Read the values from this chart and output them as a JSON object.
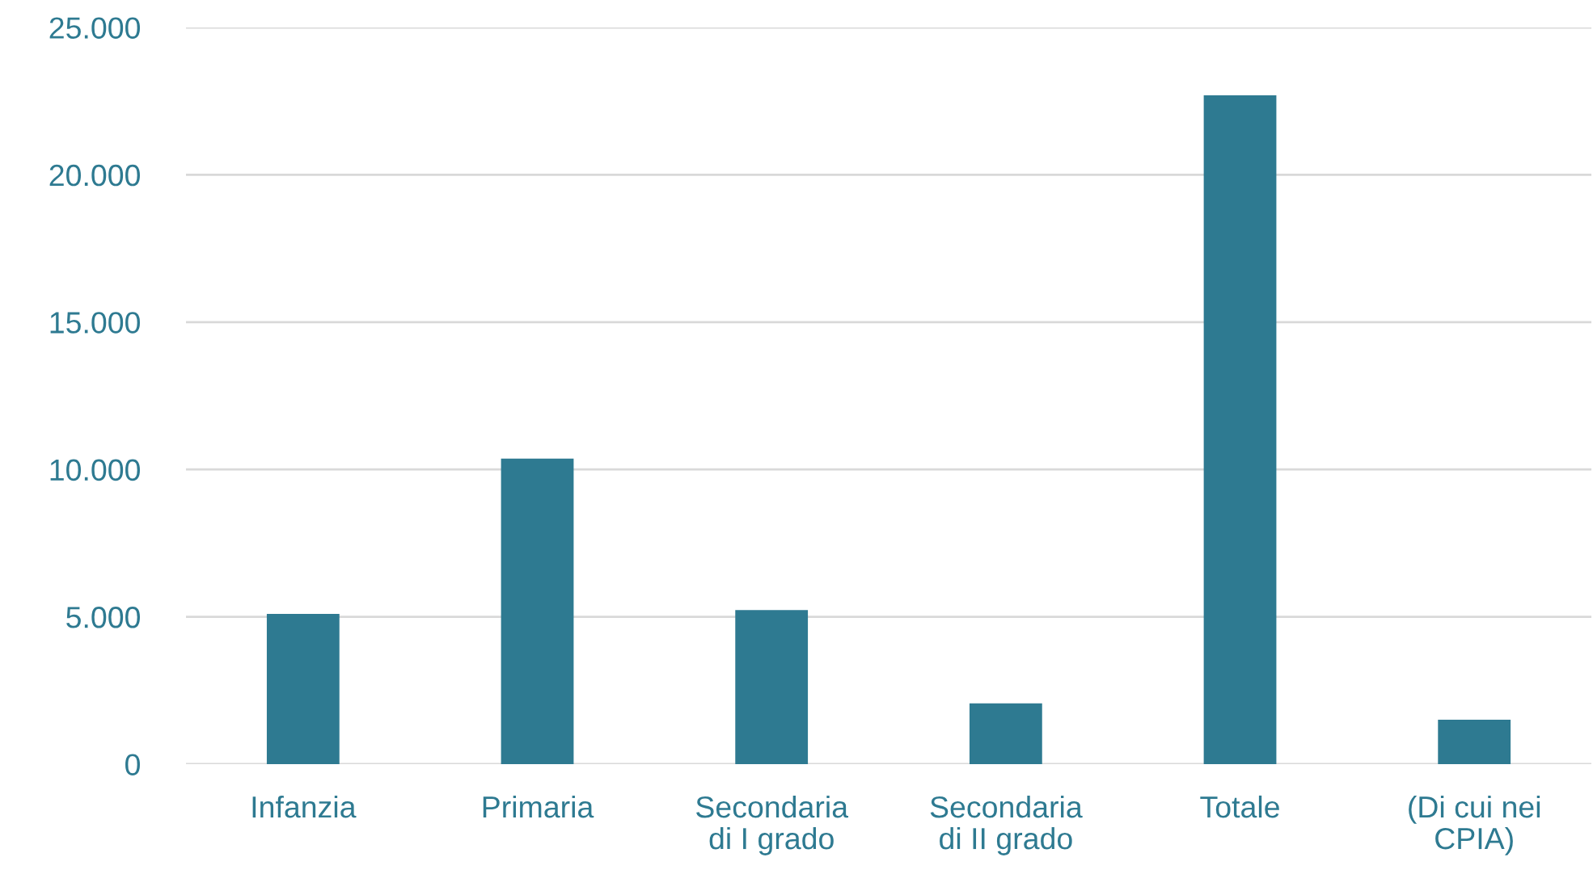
{
  "chart_data": {
    "type": "bar",
    "categories": [
      "Infanzia",
      "Primaria",
      "Secondaria\ndi I grado",
      "Secondaria\ndi II grado",
      "Totale",
      "(Di cui nei\nCPIA)"
    ],
    "values": [
      5100,
      10370,
      5230,
      2060,
      22700,
      1510
    ],
    "color": "#2e7a91",
    "ylim": [
      0,
      25000
    ],
    "yticks": [
      0,
      {
        "value": 5000,
        "label": "5.000"
      },
      {
        "value": 10000,
        "label": "10.000"
      },
      {
        "value": 15000,
        "label": "15.000"
      },
      {
        "value": 20000,
        "label": "20.000"
      },
      {
        "value": 25000,
        "label": "25.000"
      }
    ],
    "grid": "y",
    "legend": false
  }
}
